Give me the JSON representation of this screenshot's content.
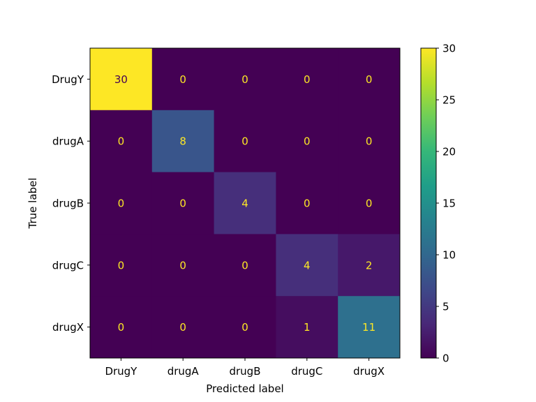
{
  "chart_data": {
    "type": "heatmap",
    "title": "",
    "xlabel": "Predicted label",
    "ylabel": "True label",
    "x_categories": [
      "DrugY",
      "drugA",
      "drugB",
      "drugC",
      "drugX"
    ],
    "y_categories": [
      "DrugY",
      "drugA",
      "drugB",
      "drugC",
      "drugX"
    ],
    "matrix": [
      [
        30,
        0,
        0,
        0,
        0
      ],
      [
        0,
        8,
        0,
        0,
        0
      ],
      [
        0,
        0,
        4,
        0,
        0
      ],
      [
        0,
        0,
        0,
        4,
        2
      ],
      [
        0,
        0,
        0,
        1,
        11
      ]
    ],
    "colormap": "viridis",
    "colorbar": {
      "min": 0,
      "max": 30,
      "ticks": [
        0,
        5,
        10,
        15,
        20,
        25,
        30
      ]
    },
    "grid": false,
    "text_color_light": "#fde725",
    "text_color_dark": "#440154"
  }
}
